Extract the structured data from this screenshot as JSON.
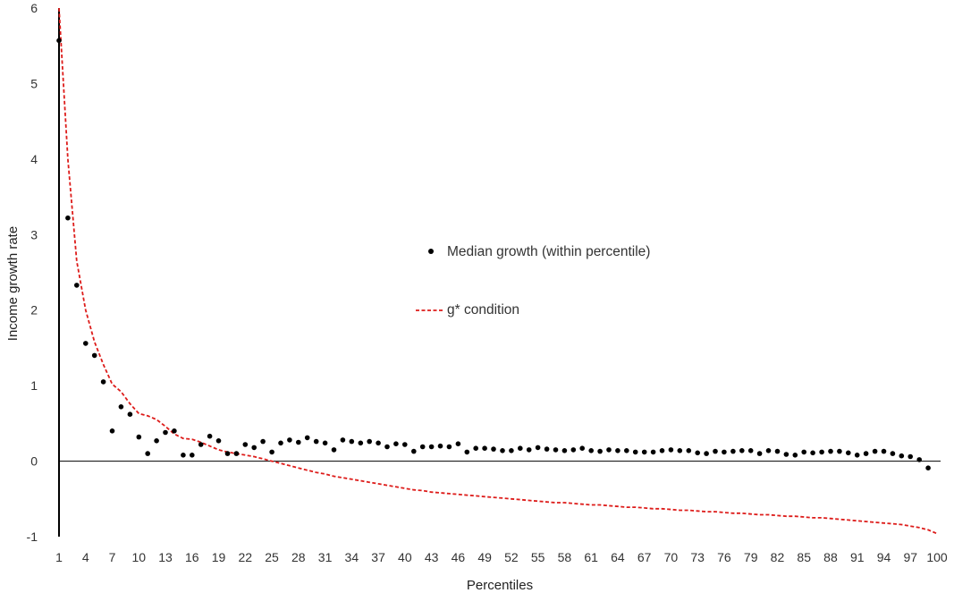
{
  "chart_data": {
    "type": "scatter",
    "title": "",
    "xlabel": "Percentiles",
    "ylabel": "Income growth rate",
    "xlim": [
      1,
      100
    ],
    "ylim": [
      -1,
      6
    ],
    "x_ticks": [
      1,
      4,
      7,
      10,
      13,
      16,
      19,
      22,
      25,
      28,
      31,
      34,
      37,
      40,
      43,
      46,
      49,
      52,
      55,
      58,
      61,
      64,
      67,
      70,
      73,
      76,
      79,
      82,
      85,
      88,
      91,
      94,
      97,
      100
    ],
    "y_ticks": [
      -1,
      0,
      1,
      2,
      3,
      4,
      5,
      6
    ],
    "grid": false,
    "legend_position": "center-right",
    "series": [
      {
        "name": "Median growth (within percentile)",
        "kind": "points",
        "color": "#000000",
        "x": [
          1,
          2,
          3,
          4,
          5,
          6,
          7,
          8,
          9,
          10,
          11,
          12,
          13,
          14,
          15,
          16,
          17,
          18,
          19,
          20,
          21,
          22,
          23,
          24,
          25,
          26,
          27,
          28,
          29,
          30,
          31,
          32,
          33,
          34,
          35,
          36,
          37,
          38,
          39,
          40,
          41,
          42,
          43,
          44,
          45,
          46,
          47,
          48,
          49,
          50,
          51,
          52,
          53,
          54,
          55,
          56,
          57,
          58,
          59,
          60,
          61,
          62,
          63,
          64,
          65,
          66,
          67,
          68,
          69,
          70,
          71,
          72,
          73,
          74,
          75,
          76,
          77,
          78,
          79,
          80,
          81,
          82,
          83,
          84,
          85,
          86,
          87,
          88,
          89,
          90,
          91,
          92,
          93,
          94,
          95,
          96,
          97,
          98,
          99,
          100
        ],
        "y": [
          5.57,
          3.22,
          2.33,
          1.56,
          1.4,
          1.05,
          0.4,
          0.72,
          0.62,
          0.32,
          0.1,
          0.27,
          0.38,
          0.4,
          0.08,
          0.08,
          0.22,
          0.33,
          0.27,
          0.1,
          0.1,
          0.22,
          0.18,
          0.26,
          0.12,
          0.24,
          0.28,
          0.25,
          0.31,
          0.26,
          0.24,
          0.15,
          0.28,
          0.26,
          0.24,
          0.26,
          0.24,
          0.19,
          0.23,
          0.22,
          0.13,
          0.19,
          0.19,
          0.2,
          0.19,
          0.23,
          0.12,
          0.17,
          0.17,
          0.16,
          0.14,
          0.14,
          0.17,
          0.15,
          0.18,
          0.16,
          0.15,
          0.14,
          0.15,
          0.17,
          0.14,
          0.13,
          0.15,
          0.14,
          0.14,
          0.12,
          0.12,
          0.12,
          0.14,
          0.15,
          0.14,
          0.14,
          0.11,
          0.1,
          0.13,
          0.12,
          0.13,
          0.14,
          0.14,
          0.1,
          0.14,
          0.13,
          0.09,
          0.08,
          0.12,
          0.11,
          0.12,
          0.13,
          0.13,
          0.11,
          0.08,
          0.1,
          0.13,
          0.13,
          0.1,
          0.07,
          0.06,
          0.02,
          -0.09,
          null
        ]
      },
      {
        "name": "g* condition",
        "kind": "dashed-line",
        "color": "#dd1c1a",
        "x": [
          1,
          2,
          3,
          4,
          5,
          6,
          7,
          8,
          9,
          10,
          11,
          12,
          13,
          14,
          15,
          16,
          17,
          18,
          19,
          20,
          21,
          22,
          23,
          24,
          25,
          26,
          27,
          28,
          29,
          30,
          31,
          32,
          33,
          34,
          35,
          36,
          37,
          38,
          39,
          40,
          41,
          42,
          43,
          44,
          45,
          46,
          47,
          48,
          49,
          50,
          51,
          52,
          53,
          54,
          55,
          56,
          57,
          58,
          59,
          60,
          61,
          62,
          63,
          64,
          65,
          66,
          67,
          68,
          69,
          70,
          71,
          72,
          73,
          74,
          75,
          76,
          77,
          78,
          79,
          80,
          81,
          82,
          83,
          84,
          85,
          86,
          87,
          88,
          89,
          90,
          91,
          92,
          93,
          94,
          95,
          96,
          97,
          98,
          99,
          100
        ],
        "y": [
          6.0,
          4.0,
          2.65,
          2.0,
          1.58,
          1.28,
          1.02,
          0.92,
          0.76,
          0.63,
          0.6,
          0.55,
          0.46,
          0.36,
          0.3,
          0.29,
          0.25,
          0.2,
          0.15,
          0.12,
          0.1,
          0.08,
          0.06,
          0.03,
          0.0,
          -0.03,
          -0.06,
          -0.09,
          -0.12,
          -0.15,
          -0.17,
          -0.2,
          -0.22,
          -0.24,
          -0.26,
          -0.28,
          -0.3,
          -0.32,
          -0.34,
          -0.36,
          -0.38,
          -0.39,
          -0.41,
          -0.42,
          -0.43,
          -0.44,
          -0.45,
          -0.46,
          -0.47,
          -0.48,
          -0.49,
          -0.5,
          -0.51,
          -0.52,
          -0.53,
          -0.54,
          -0.55,
          -0.55,
          -0.56,
          -0.57,
          -0.58,
          -0.58,
          -0.59,
          -0.6,
          -0.61,
          -0.61,
          -0.62,
          -0.63,
          -0.63,
          -0.64,
          -0.65,
          -0.65,
          -0.66,
          -0.67,
          -0.67,
          -0.68,
          -0.69,
          -0.69,
          -0.7,
          -0.71,
          -0.71,
          -0.72,
          -0.73,
          -0.73,
          -0.74,
          -0.75,
          -0.75,
          -0.76,
          -0.77,
          -0.78,
          -0.79,
          -0.8,
          -0.81,
          -0.82,
          -0.83,
          -0.84,
          -0.86,
          -0.88,
          -0.91,
          -0.96
        ]
      }
    ]
  }
}
